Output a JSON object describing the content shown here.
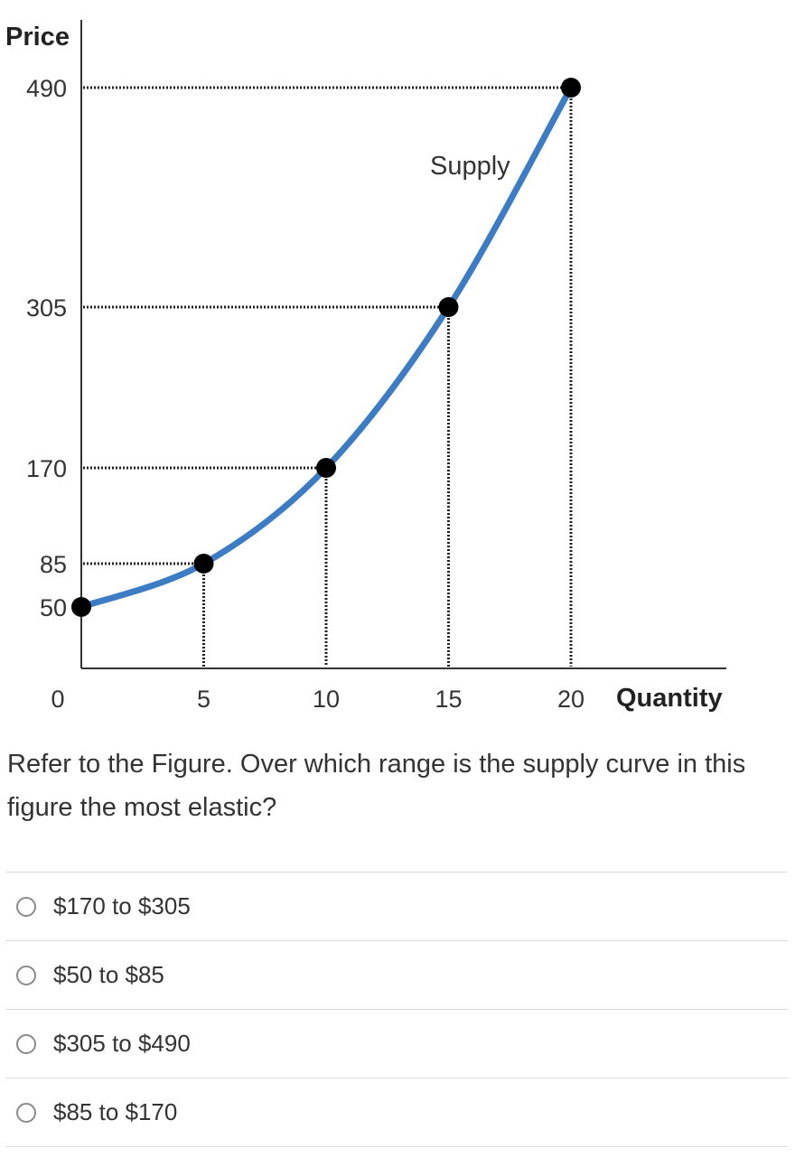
{
  "chart_data": {
    "type": "line",
    "ylabel": "Price",
    "xlabel": "Quantity",
    "series": [
      {
        "name": "Supply",
        "x": [
          0,
          5,
          10,
          15,
          20
        ],
        "y": [
          50,
          85,
          170,
          305,
          490
        ]
      }
    ],
    "x_ticks": [
      "0",
      "5",
      "10",
      "15",
      "20"
    ],
    "y_ticks": [
      "50",
      "85",
      "170",
      "305",
      "490"
    ],
    "xlim": [
      0,
      20
    ],
    "curve_color": "#3b7cc4",
    "guide_lines": "dotted",
    "grid": false
  },
  "question": {
    "text": "Refer to the Figure. Over which range is the supply curve in this figure the most elastic?"
  },
  "options": [
    {
      "label": "$170 to $305"
    },
    {
      "label": "$50 to $85"
    },
    {
      "label": "$305 to $490"
    },
    {
      "label": "$85 to $170"
    }
  ]
}
